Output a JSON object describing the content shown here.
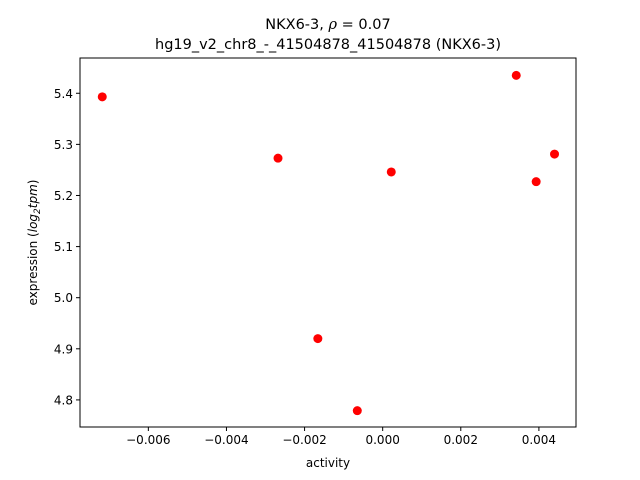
{
  "chart_data": {
    "type": "scatter",
    "title_line1_prefix": "NKX6-3, ",
    "title_line1_rho": "ρ",
    "title_line1_suffix": " = 0.07",
    "title_line2": "hg19_v2_chr8_-_41504878_41504878 (NKX6-3)",
    "xlabel": "activity",
    "ylabel_prefix": "expression (",
    "ylabel_math": "log",
    "ylabel_sub": "2",
    "ylabel_math2": "tpm",
    "ylabel_suffix": ")",
    "xlim": [
      -0.00775,
      0.00495
    ],
    "ylim": [
      4.747,
      5.469
    ],
    "xticks": [
      {
        "value": -0.006,
        "label": "−0.006"
      },
      {
        "value": -0.004,
        "label": "−0.004"
      },
      {
        "value": -0.002,
        "label": "−0.002"
      },
      {
        "value": 0.0,
        "label": "0.000"
      },
      {
        "value": 0.002,
        "label": "0.002"
      },
      {
        "value": 0.004,
        "label": "0.004"
      }
    ],
    "yticks": [
      {
        "value": 4.8,
        "label": "4.8"
      },
      {
        "value": 4.9,
        "label": "4.9"
      },
      {
        "value": 5.0,
        "label": "5.0"
      },
      {
        "value": 5.1,
        "label": "5.1"
      },
      {
        "value": 5.2,
        "label": "5.2"
      },
      {
        "value": 5.3,
        "label": "5.3"
      },
      {
        "value": 5.4,
        "label": "5.4"
      }
    ],
    "grid": false,
    "point_color": "#ff0000",
    "points": [
      {
        "x": -0.00718,
        "y": 5.393
      },
      {
        "x": -0.00268,
        "y": 5.273
      },
      {
        "x": -0.00166,
        "y": 4.92
      },
      {
        "x": -0.00065,
        "y": 4.779
      },
      {
        "x": 0.00022,
        "y": 5.246
      },
      {
        "x": 0.00342,
        "y": 5.435
      },
      {
        "x": 0.00393,
        "y": 5.227
      },
      {
        "x": 0.0044,
        "y": 5.281
      }
    ]
  }
}
